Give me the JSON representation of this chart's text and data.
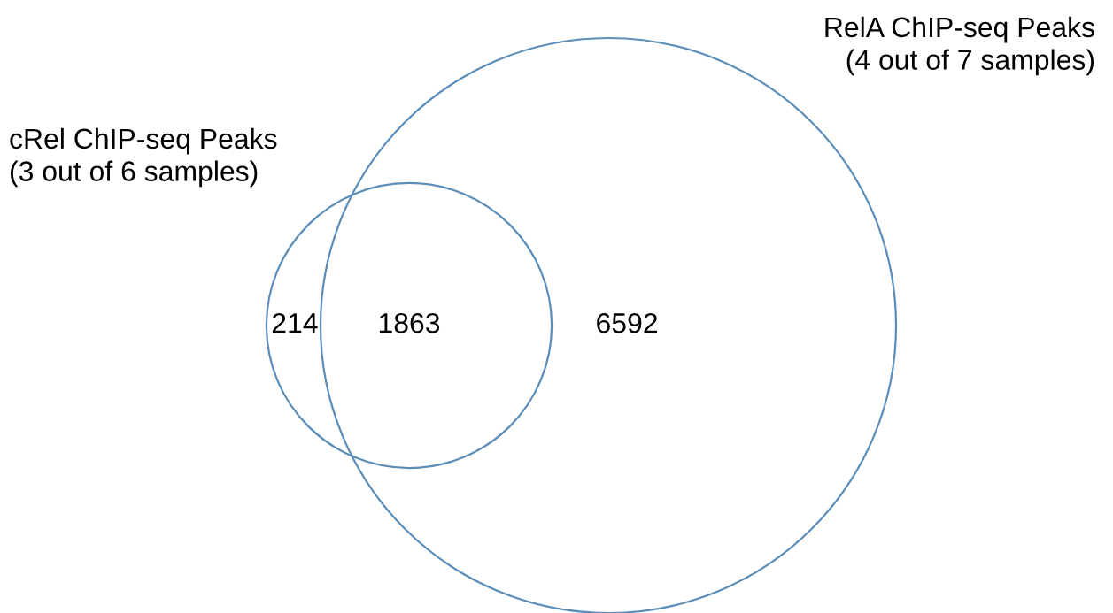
{
  "chart_data": {
    "type": "other",
    "categories": [
      null,
      null,
      null
    ],
    "values": [
      214,
      1863,
      6592
    ],
    "data_labels": true,
    "color": "#5b8db8",
    "annotations": [
      "cRel ChIP-seq Peaks\n(3 out of 6 samples)",
      "RelA ChIP-seq Peaks\n(4 out of 7 samples)"
    ]
  }
}
